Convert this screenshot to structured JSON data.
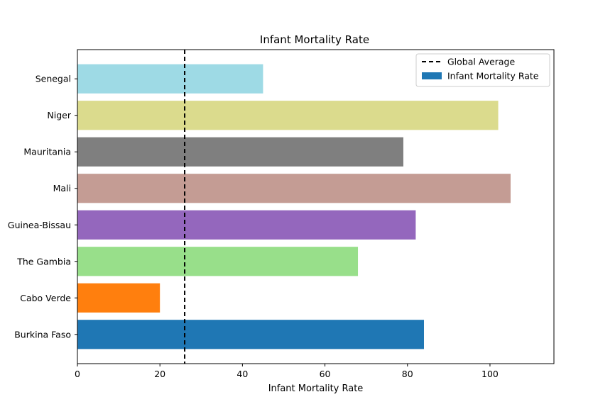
{
  "chart_data": {
    "type": "bar",
    "orientation": "horizontal",
    "title": "Infant Mortality Rate",
    "xlabel": "Infant Mortality Rate",
    "ylabel": "",
    "categories": [
      "Burkina Faso",
      "Cabo Verde",
      "The Gambia",
      "Guinea-Bissau",
      "Mali",
      "Mauritania",
      "Niger",
      "Senegal"
    ],
    "values": [
      84,
      20,
      68,
      82,
      105,
      79,
      102,
      45
    ],
    "colors": [
      "#1f77b4",
      "#ff7f0e",
      "#98df8a",
      "#9467bd",
      "#c49c94",
      "#7f7f7f",
      "#dbdb8d",
      "#9edae5"
    ],
    "xlim": [
      0,
      115.5
    ],
    "xticks": [
      0,
      20,
      40,
      60,
      80,
      100
    ],
    "reference_line": {
      "label": "Global Average",
      "value": 26,
      "style": "dashed",
      "color": "#000000"
    },
    "legend": {
      "position": "top-right",
      "entries": [
        {
          "label": "Global Average",
          "kind": "dashed-line",
          "color": "#000000"
        },
        {
          "label": "Infant Mortality Rate",
          "kind": "patch",
          "color": "#1f77b4"
        }
      ]
    },
    "grid": false
  }
}
